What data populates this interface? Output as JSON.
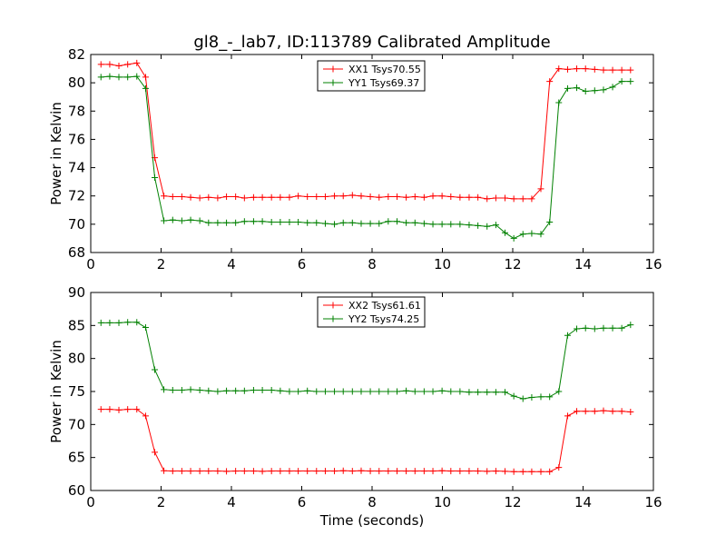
{
  "chart_data": {
    "type": "line",
    "title": "gl8_-_lab7, ID:113789 Calibrated Amplitude",
    "xlabel": "Time (seconds)",
    "subplots": [
      {
        "ylabel": "Power in Kelvin",
        "xlim": [
          0,
          16
        ],
        "ylim": [
          68,
          82
        ],
        "xticks": [
          "0",
          "2",
          "4",
          "6",
          "8",
          "10",
          "12",
          "14",
          "16"
        ],
        "yticks": [
          "68",
          "70",
          "72",
          "74",
          "76",
          "78",
          "80",
          "82"
        ],
        "legend_position": "upper center",
        "x": [
          0.29,
          0.54,
          0.8,
          1.05,
          1.31,
          1.56,
          1.82,
          2.08,
          2.33,
          2.59,
          2.84,
          3.1,
          3.35,
          3.61,
          3.86,
          4.12,
          4.37,
          4.63,
          4.88,
          5.14,
          5.39,
          5.65,
          5.9,
          6.16,
          6.42,
          6.67,
          6.93,
          7.18,
          7.44,
          7.69,
          7.95,
          8.2,
          8.46,
          8.71,
          8.97,
          9.22,
          9.48,
          9.73,
          9.99,
          10.24,
          10.5,
          10.76,
          11.01,
          11.27,
          11.52,
          11.78,
          12.03,
          12.29,
          12.54,
          12.8,
          13.05,
          13.31,
          13.56,
          13.82,
          14.07,
          14.33,
          14.58,
          14.84,
          15.1,
          15.35
        ],
        "series": [
          {
            "name": "XX1 Tsys70.55",
            "color": "#ff0000",
            "values": [
              81.3,
              81.3,
              81.2,
              81.3,
              81.4,
              80.4,
              74.7,
              72.0,
              71.95,
              71.95,
              71.9,
              71.85,
              71.9,
              71.85,
              71.95,
              71.95,
              71.85,
              71.9,
              71.9,
              71.9,
              71.9,
              71.9,
              72.0,
              71.95,
              71.95,
              71.95,
              72.0,
              72.0,
              72.05,
              72.0,
              71.95,
              71.9,
              71.95,
              71.95,
              71.9,
              71.95,
              71.9,
              72.0,
              72.0,
              71.95,
              71.9,
              71.9,
              71.9,
              71.8,
              71.85,
              71.85,
              71.8,
              71.8,
              71.8,
              72.5,
              80.1,
              81.0,
              80.95,
              81.0,
              81.0,
              80.95,
              80.9,
              80.9,
              80.9,
              80.9
            ]
          },
          {
            "name": "YY1 Tsys69.37",
            "color": "#008000",
            "values": [
              80.4,
              80.45,
              80.4,
              80.4,
              80.45,
              79.6,
              73.3,
              70.25,
              70.3,
              70.25,
              70.3,
              70.25,
              70.1,
              70.1,
              70.1,
              70.1,
              70.2,
              70.2,
              70.2,
              70.15,
              70.15,
              70.15,
              70.15,
              70.1,
              70.1,
              70.05,
              70.0,
              70.1,
              70.1,
              70.05,
              70.05,
              70.05,
              70.2,
              70.2,
              70.1,
              70.1,
              70.05,
              70.0,
              70.0,
              70.0,
              70.0,
              69.95,
              69.9,
              69.85,
              69.95,
              69.4,
              69.0,
              69.3,
              69.35,
              69.3,
              70.15,
              78.6,
              79.6,
              79.65,
              79.4,
              79.45,
              79.5,
              79.7,
              80.1,
              80.1
            ]
          }
        ]
      },
      {
        "ylabel": "Power in Kelvin",
        "xlim": [
          0,
          16
        ],
        "ylim": [
          60,
          90
        ],
        "xticks": [
          "0",
          "2",
          "4",
          "6",
          "8",
          "10",
          "12",
          "14",
          "16"
        ],
        "yticks": [
          "60",
          "65",
          "70",
          "75",
          "80",
          "85",
          "90"
        ],
        "legend_position": "upper center",
        "x": [
          0.29,
          0.54,
          0.8,
          1.05,
          1.31,
          1.56,
          1.82,
          2.08,
          2.33,
          2.59,
          2.84,
          3.1,
          3.35,
          3.61,
          3.86,
          4.12,
          4.37,
          4.63,
          4.88,
          5.14,
          5.39,
          5.65,
          5.9,
          6.16,
          6.42,
          6.67,
          6.93,
          7.18,
          7.44,
          7.69,
          7.95,
          8.2,
          8.46,
          8.71,
          8.97,
          9.22,
          9.48,
          9.73,
          9.99,
          10.24,
          10.5,
          10.76,
          11.01,
          11.27,
          11.52,
          11.78,
          12.03,
          12.29,
          12.54,
          12.8,
          13.05,
          13.31,
          13.56,
          13.82,
          14.07,
          14.33,
          14.58,
          14.84,
          15.1,
          15.35
        ],
        "series": [
          {
            "name": "XX2 Tsys61.61",
            "color": "#ff0000",
            "values": [
              72.3,
              72.3,
              72.2,
              72.3,
              72.3,
              71.3,
              65.8,
              63.0,
              62.95,
              62.95,
              62.95,
              62.95,
              62.95,
              62.95,
              62.9,
              62.95,
              62.95,
              62.95,
              62.9,
              62.95,
              62.95,
              62.95,
              62.95,
              62.95,
              62.95,
              62.95,
              62.95,
              63.0,
              62.95,
              63.0,
              62.95,
              62.95,
              62.95,
              62.95,
              62.95,
              62.95,
              62.95,
              62.95,
              63.0,
              62.95,
              62.95,
              62.95,
              62.95,
              62.9,
              62.95,
              62.9,
              62.85,
              62.85,
              62.85,
              62.85,
              62.85,
              63.5,
              71.3,
              72.0,
              72.0,
              72.0,
              72.1,
              72.0,
              72.0,
              71.9
            ]
          },
          {
            "name": "YY2 Tsys74.25",
            "color": "#008000",
            "values": [
              85.4,
              85.4,
              85.4,
              85.5,
              85.5,
              84.7,
              78.3,
              75.3,
              75.2,
              75.2,
              75.3,
              75.2,
              75.1,
              75.0,
              75.1,
              75.1,
              75.1,
              75.2,
              75.2,
              75.2,
              75.1,
              75.0,
              75.0,
              75.1,
              75.0,
              75.0,
              75.0,
              75.0,
              75.0,
              75.0,
              75.0,
              75.0,
              75.0,
              75.0,
              75.1,
              75.0,
              75.0,
              75.0,
              75.1,
              75.0,
              75.0,
              74.9,
              74.9,
              74.9,
              74.9,
              74.9,
              74.3,
              73.9,
              74.1,
              74.2,
              74.2,
              75.0,
              83.5,
              84.5,
              84.6,
              84.5,
              84.6,
              84.6,
              84.6,
              85.1
            ]
          }
        ]
      }
    ]
  }
}
